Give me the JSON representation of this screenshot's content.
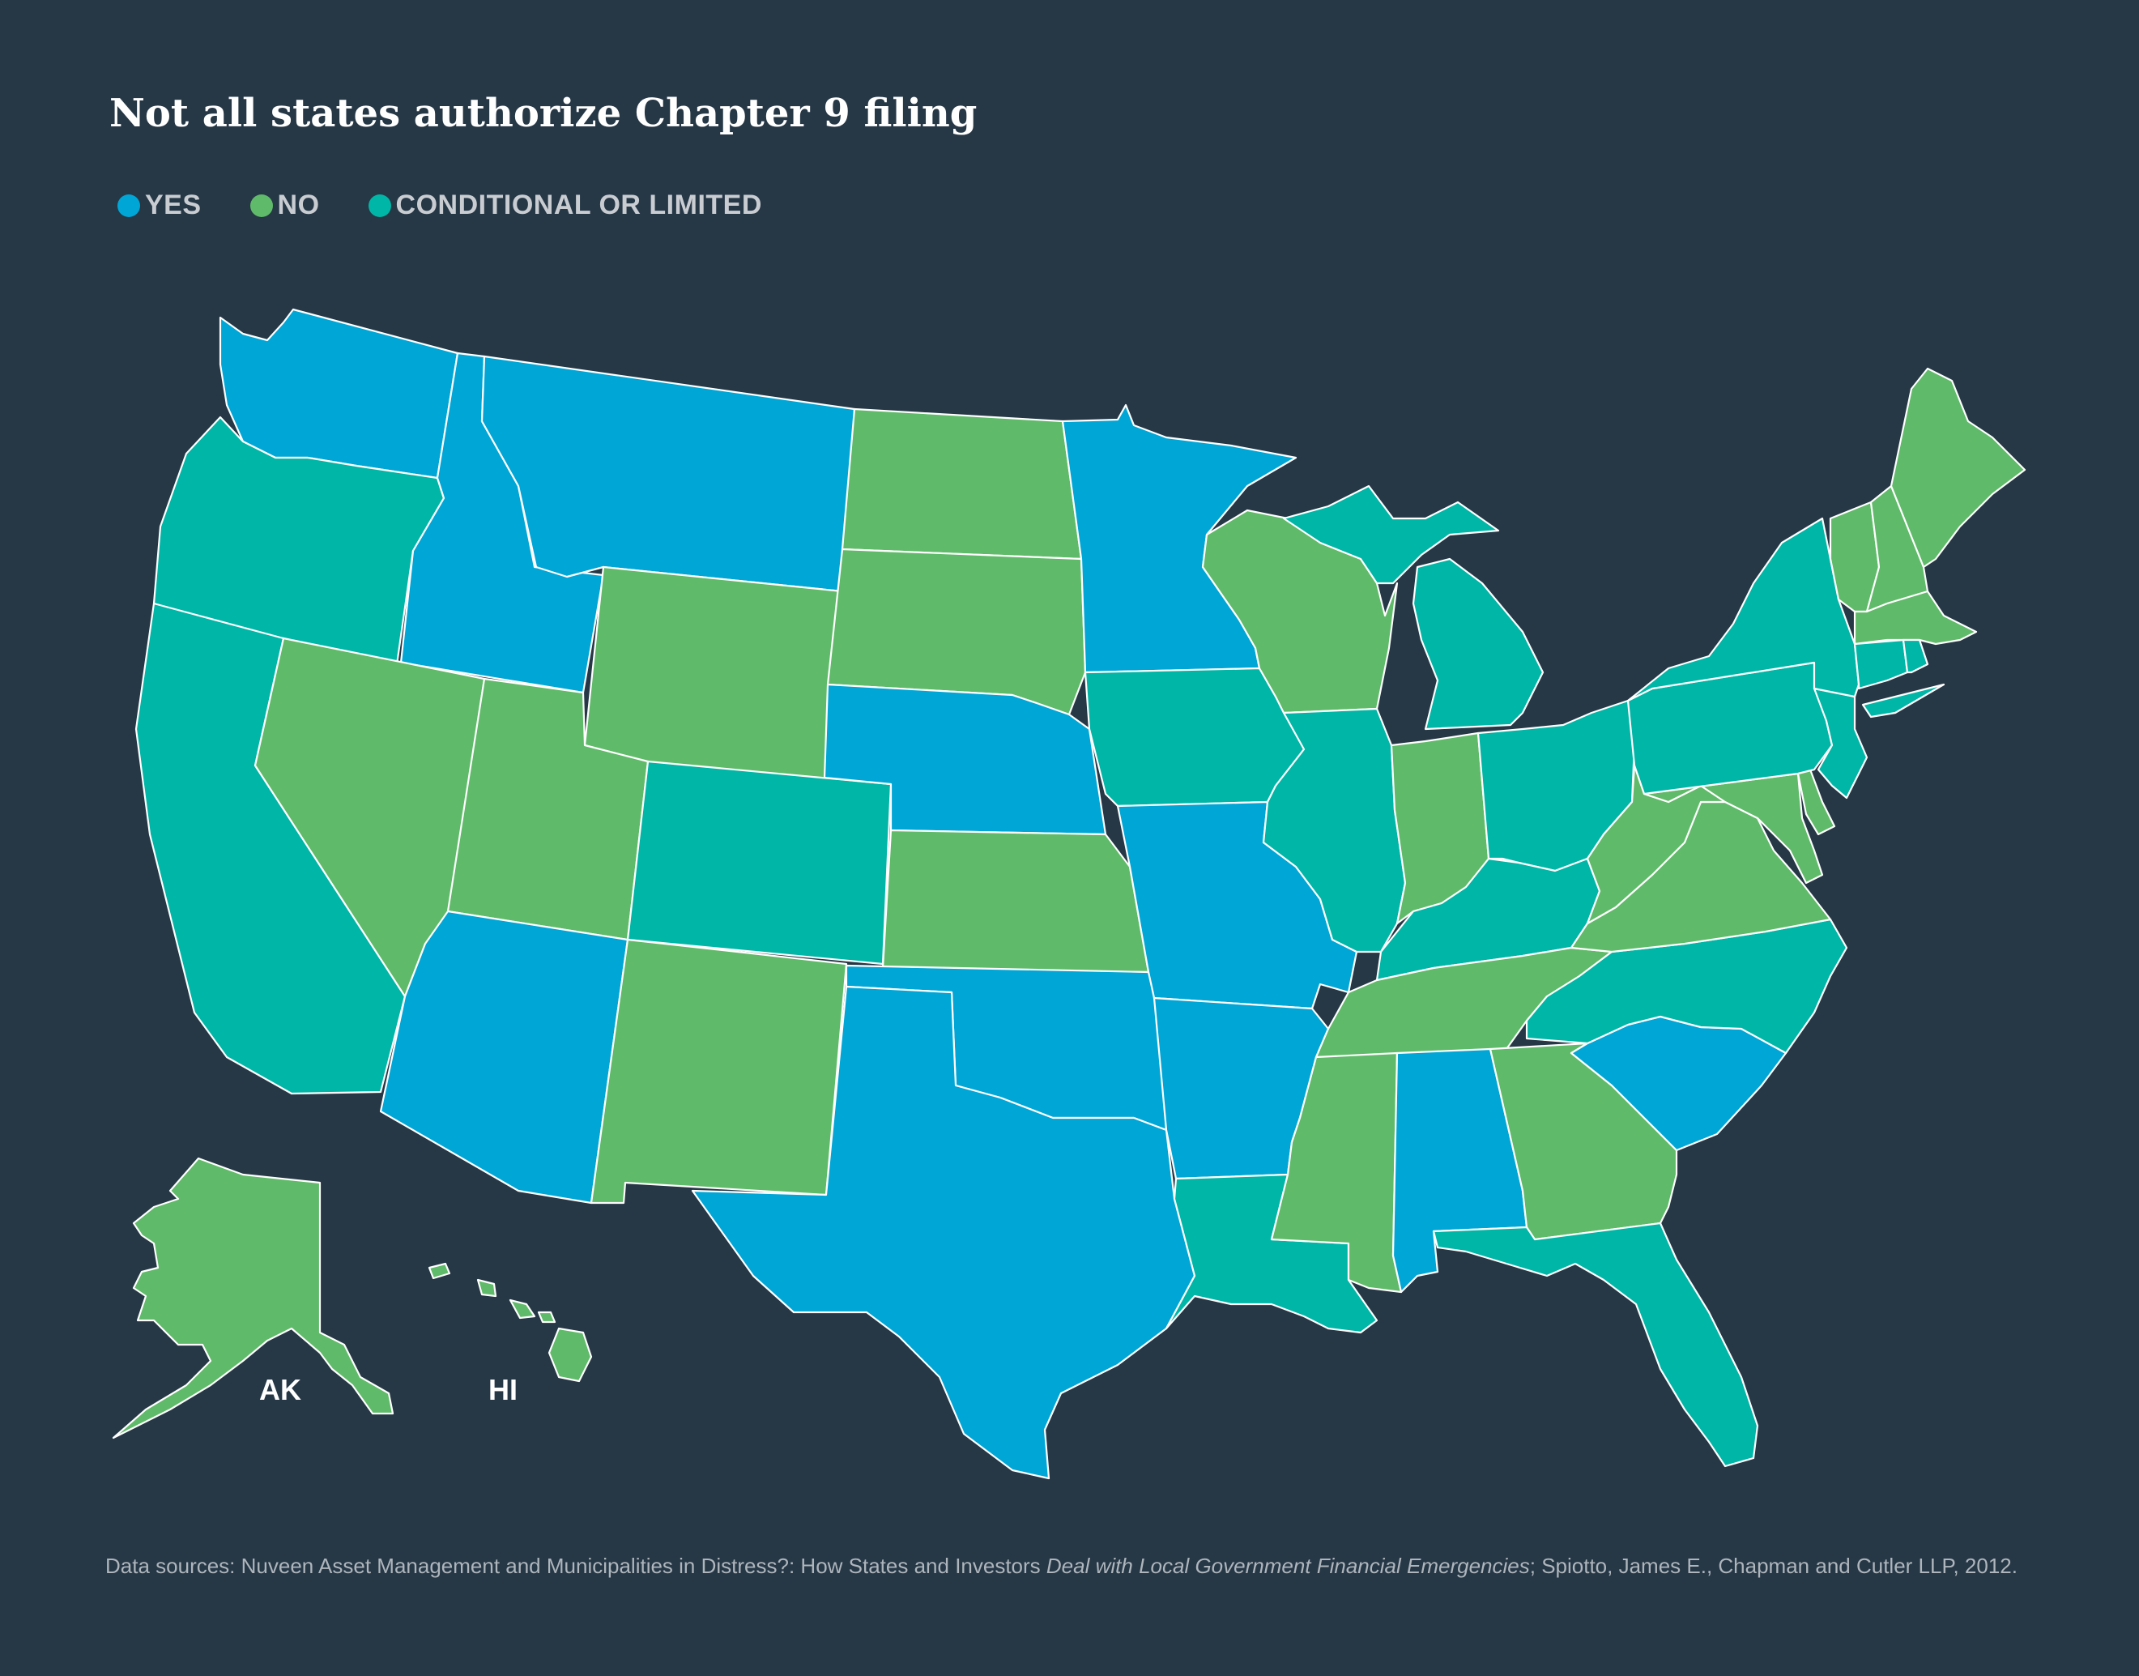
{
  "title": "Not all states authorize Chapter 9 filing",
  "legend": [
    {
      "key": "yes",
      "label": "YES",
      "color": "#00a6d6"
    },
    {
      "key": "no",
      "label": "NO",
      "color": "#5fba69"
    },
    {
      "key": "conditional",
      "label": "CONDITIONAL OR LIMITED",
      "color": "#00b6a7"
    }
  ],
  "insets": {
    "alaska": "AK",
    "hawaii": "HI"
  },
  "source": {
    "prefix": "Data sources: Nuveen Asset Management and Municipalities in Distress?: How States and Investors ",
    "italic": "Deal with Local Government Financial Emergencies",
    "suffix": "; Spiotto, James E., Chapman and Cutler LLP, 2012."
  },
  "states": {
    "WA": "yes",
    "OR": "conditional",
    "CA": "conditional",
    "ID": "yes",
    "NV": "no",
    "MT": "yes",
    "WY": "no",
    "UT": "no",
    "AZ": "yes",
    "CO": "conditional",
    "NM": "no",
    "ND": "no",
    "SD": "no",
    "NE": "yes",
    "KS": "no",
    "OK": "yes",
    "TX": "yes",
    "MN": "yes",
    "IA": "conditional",
    "MO": "yes",
    "AR": "yes",
    "LA": "conditional",
    "WI": "no",
    "IL": "conditional",
    "MI": "conditional",
    "IN": "no",
    "OH": "conditional",
    "KY": "conditional",
    "TN": "no",
    "MS": "no",
    "AL": "yes",
    "GA": "no",
    "FL": "conditional",
    "SC": "yes",
    "NC": "conditional",
    "VA": "no",
    "WV": "no",
    "MD": "no",
    "DE": "no",
    "PA": "conditional",
    "NJ": "conditional",
    "NY": "conditional",
    "CT": "conditional",
    "RI": "conditional",
    "MA": "no",
    "VT": "no",
    "NH": "no",
    "ME": "no",
    "AK": "no",
    "HI": "no"
  }
}
